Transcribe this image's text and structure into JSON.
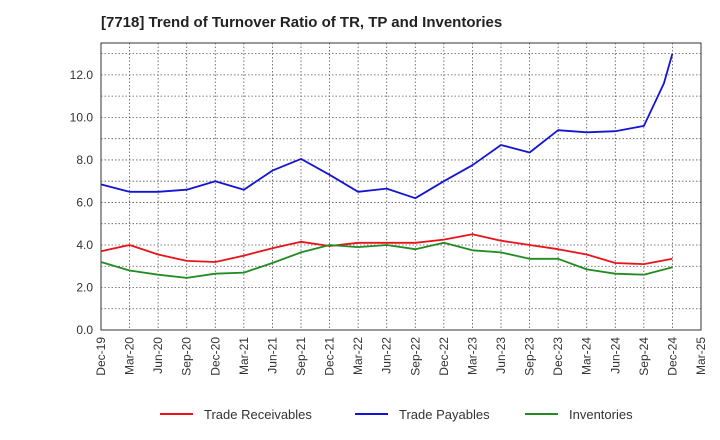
{
  "chart_data": {
    "type": "line",
    "title": "[7718]  Trend of Turnover Ratio of TR, TP and Inventories",
    "xlabel": "",
    "ylabel": "",
    "x": [
      "Dec-19",
      "Mar-20",
      "Jun-20",
      "Sep-20",
      "Dec-20",
      "Mar-21",
      "Jun-21",
      "Sep-21",
      "Dec-21",
      "Mar-22",
      "Jun-22",
      "Sep-22",
      "Dec-22",
      "Mar-23",
      "Jun-23",
      "Sep-23",
      "Dec-23",
      "Mar-24",
      "Jun-24",
      "Sep-24",
      "Dec-24",
      "Mar-25"
    ],
    "ylim": [
      0,
      13.5
    ],
    "yticks": [
      "0.0",
      "2.0",
      "4.0",
      "6.0",
      "8.0",
      "10.0",
      "12.0"
    ],
    "grid": true,
    "legend_position": "bottom",
    "series": [
      {
        "name": "Trade Receivables",
        "color": "#e8141a",
        "x": [
          0,
          1,
          2,
          3,
          4,
          5,
          6,
          7,
          8,
          9,
          10,
          11,
          12,
          13,
          14,
          15,
          16,
          17,
          18,
          19,
          20
        ],
        "values": [
          3.7,
          4.0,
          3.55,
          3.25,
          3.2,
          3.5,
          3.85,
          4.15,
          3.95,
          4.1,
          4.1,
          4.1,
          4.25,
          4.5,
          4.2,
          4.0,
          3.8,
          3.55,
          3.15,
          3.1,
          3.35
        ]
      },
      {
        "name": "Trade Payables",
        "color": "#1414d2",
        "x": [
          0,
          1,
          2,
          3,
          4,
          5,
          6,
          7,
          8,
          9,
          10,
          11,
          12,
          13,
          14,
          15,
          16,
          17,
          18,
          19,
          19.7,
          20
        ],
        "values": [
          6.85,
          6.5,
          6.5,
          6.6,
          7.0,
          6.6,
          7.5,
          8.05,
          7.3,
          6.5,
          6.65,
          6.2,
          7.0,
          7.75,
          8.7,
          8.35,
          9.4,
          9.3,
          9.35,
          9.6,
          11.6,
          13.0
        ]
      },
      {
        "name": "Inventories",
        "color": "#228b22",
        "x": [
          0,
          1,
          2,
          3,
          4,
          5,
          6,
          7,
          8,
          9,
          10,
          11,
          12,
          13,
          14,
          15,
          16,
          17,
          18,
          19,
          20
        ],
        "values": [
          3.2,
          2.8,
          2.6,
          2.45,
          2.65,
          2.7,
          3.15,
          3.65,
          4.0,
          3.9,
          4.0,
          3.8,
          4.1,
          3.75,
          3.65,
          3.35,
          3.35,
          2.85,
          2.65,
          2.6,
          2.95
        ]
      }
    ]
  }
}
